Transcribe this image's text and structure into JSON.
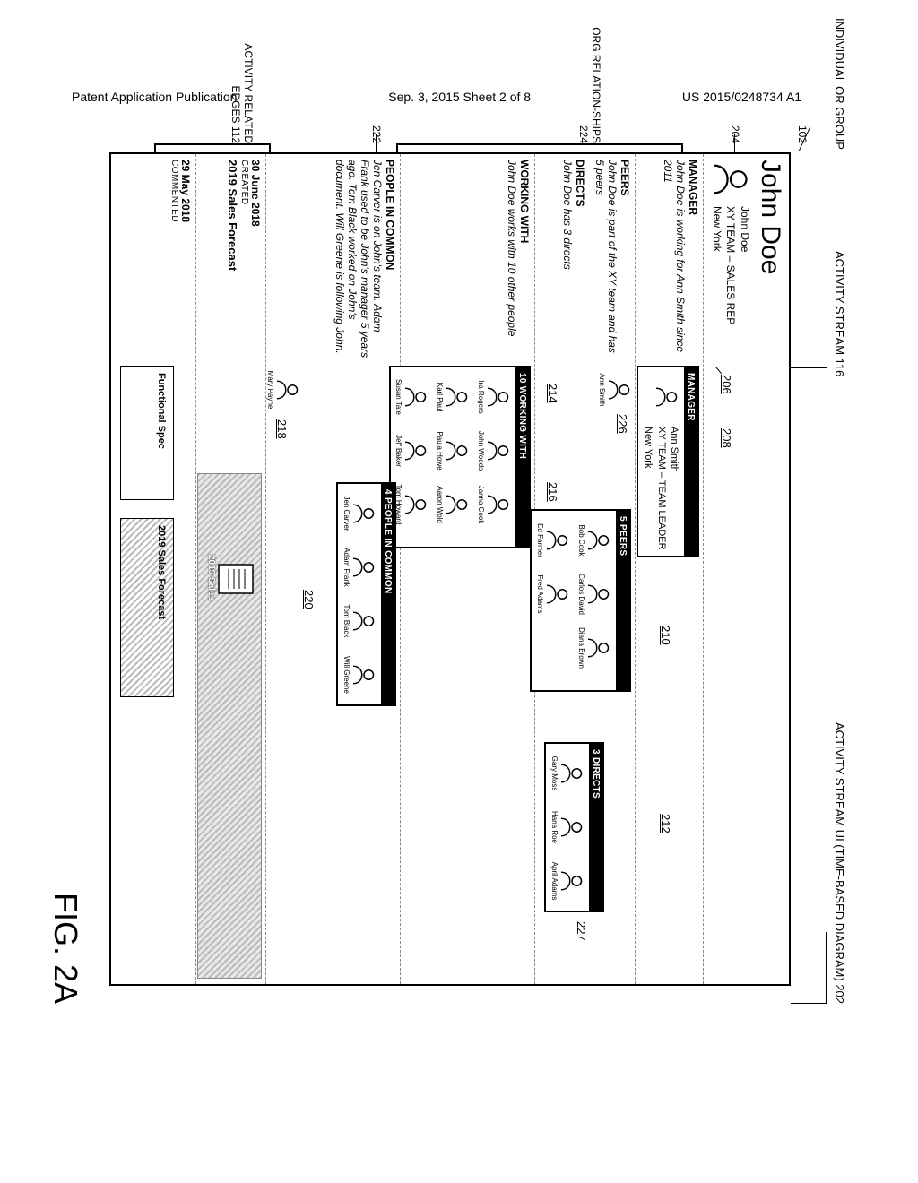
{
  "header": {
    "left": "Patent Application Publication",
    "mid": "Sep. 3, 2015  Sheet 2 of 8",
    "right": "US 2015/0248734 A1"
  },
  "figure_label": "FIG. 2A",
  "top_captions": {
    "left": "INDIVIDUAL OR GROUP",
    "mid": "ACTIVITY STREAM 116",
    "right": "ACTIVITY STREAM UI (TIME-BASED DIAGRAM) 202"
  },
  "side_labels": {
    "l102": "102",
    "l204": "204",
    "org": "ORG RELATION-SHIPS 224",
    "l222": "222",
    "activity": "ACTIVITY RELATED EDGES 112"
  },
  "refs": {
    "r206": "206",
    "r208": "208",
    "r210": "210",
    "r212": "212",
    "r214": "214",
    "r216": "216",
    "r218": "218",
    "r220": "220",
    "r226": "226",
    "r227": "227"
  },
  "subject": {
    "name": "John Doe",
    "role": "XY TEAM – SALES REP",
    "location": "New York"
  },
  "manager_section": {
    "head": "MANAGER",
    "desc": "John Doe is working for Ann Smith since 2011",
    "card_head": "MANAGER",
    "mgr_name": "Ann Smith",
    "mgr_role": "XY TEAM – TEAM LEADER",
    "mgr_loc": "New York",
    "mini_name": "Ann Smith"
  },
  "peers_section": {
    "head": "PEERS",
    "desc": "John Doe is part of the XY team and has 5 peers",
    "card_head": "5 PEERS",
    "people": [
      "Bob Cook",
      "Carlos David",
      "Diana Brown",
      "Ed Farmer",
      "Fred Adams"
    ]
  },
  "directs_section": {
    "head": "DIRECTS",
    "desc": "John Doe has 3 directs",
    "card_head": "3 DIRECTS",
    "people": [
      "Gary Moss",
      "Hana Roe",
      "April Adams"
    ]
  },
  "working_section": {
    "head": "WORKING WITH",
    "desc": "John Doe works with 10 other people",
    "card_head": "10 WORKING WITH",
    "people": [
      "Ira Rogers",
      "John Woods",
      "Janna Cook",
      "Karl Paul",
      "Paula Howe",
      "Aaron Wold",
      "Susan Tate",
      "Jeff Baker",
      "Tom Howard"
    ]
  },
  "common_section": {
    "head": "PEOPLE IN COMMON",
    "desc": "Jen Carver is on John's team. Adam Frank used to be John's manager 5 years ago. Tom Black worked on John's document. Will Greene is following John.",
    "card_head": "4 PEOPLE IN COMMON",
    "people": [
      "Jen Carver",
      "Adam Frank",
      "Tom Black",
      "Will Greene"
    ],
    "extra": "Mary Payne"
  },
  "activity1": {
    "date": "30 June 2018",
    "verb": "CREATED",
    "title": "2019 Sales Forecast",
    "doc_label": "2019 Sales"
  },
  "activity2": {
    "date": "29 May 2018",
    "verb": "COMMENTED",
    "title": "Functional Spec",
    "doc_label": "Functional Spec",
    "doc2": "2019 Sales Forecast"
  }
}
